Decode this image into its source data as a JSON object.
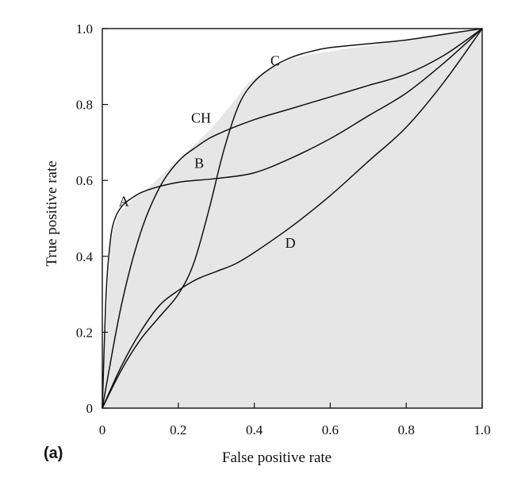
{
  "panel_label": "(a)",
  "chart_data": {
    "type": "line",
    "xlabel": "False positive rate",
    "ylabel": "True positive rate",
    "xlim": [
      0,
      1
    ],
    "ylim": [
      0,
      1
    ],
    "x_ticks": [
      "0",
      "0.2",
      "0.4",
      "0.6",
      "0.8",
      "1.0"
    ],
    "y_ticks": [
      "0",
      "0.2",
      "0.4",
      "0.6",
      "0.8",
      "1.0"
    ],
    "grid": false,
    "hull_fill_color": "#e6e6e6",
    "hull": {
      "name": "CH",
      "x": [
        0,
        0.02,
        0.04,
        0.06,
        0.08,
        0.12,
        0.2,
        0.28,
        0.34,
        0.4,
        0.5,
        0.6,
        0.7,
        0.8,
        0.9,
        1.0
      ],
      "y": [
        0,
        0.4,
        0.5,
        0.53,
        0.55,
        0.58,
        0.655,
        0.73,
        0.8,
        0.87,
        0.92,
        0.94,
        0.955,
        0.97,
        0.985,
        1.0
      ]
    },
    "series": [
      {
        "name": "A",
        "x": [
          0,
          0.01,
          0.02,
          0.03,
          0.05,
          0.08,
          0.12,
          0.2,
          0.3,
          0.4,
          0.5,
          0.6,
          0.7,
          0.8,
          0.9,
          1.0
        ],
        "y": [
          0,
          0.3,
          0.43,
          0.49,
          0.53,
          0.555,
          0.575,
          0.595,
          0.605,
          0.62,
          0.66,
          0.71,
          0.77,
          0.83,
          0.91,
          1.0
        ]
      },
      {
        "name": "B",
        "x": [
          0,
          0.05,
          0.1,
          0.15,
          0.2,
          0.25,
          0.3,
          0.4,
          0.5,
          0.6,
          0.7,
          0.8,
          0.9,
          1.0
        ],
        "y": [
          0,
          0.27,
          0.46,
          0.58,
          0.65,
          0.69,
          0.72,
          0.76,
          0.79,
          0.82,
          0.85,
          0.88,
          0.93,
          1.0
        ]
      },
      {
        "name": "C",
        "x": [
          0,
          0.05,
          0.1,
          0.15,
          0.2,
          0.24,
          0.28,
          0.32,
          0.36,
          0.4,
          0.45,
          0.5,
          0.55,
          0.6,
          0.7,
          0.8,
          0.9,
          1.0
        ],
        "y": [
          0,
          0.1,
          0.18,
          0.24,
          0.3,
          0.38,
          0.52,
          0.68,
          0.8,
          0.86,
          0.9,
          0.925,
          0.94,
          0.95,
          0.96,
          0.97,
          0.985,
          1.0
        ]
      },
      {
        "name": "D",
        "x": [
          0,
          0.05,
          0.1,
          0.15,
          0.2,
          0.25,
          0.3,
          0.35,
          0.4,
          0.5,
          0.6,
          0.7,
          0.8,
          0.9,
          1.0
        ],
        "y": [
          0,
          0.11,
          0.2,
          0.27,
          0.31,
          0.34,
          0.36,
          0.38,
          0.41,
          0.48,
          0.56,
          0.65,
          0.74,
          0.86,
          1.0
        ]
      }
    ],
    "labels": [
      {
        "text": "A",
        "x": 0.057,
        "y": 0.545
      },
      {
        "text": "B",
        "x": 0.255,
        "y": 0.645
      },
      {
        "text": "C",
        "x": 0.455,
        "y": 0.915
      },
      {
        "text": "CH",
        "x": 0.26,
        "y": 0.765
      },
      {
        "text": "D",
        "x": 0.495,
        "y": 0.435
      }
    ]
  }
}
